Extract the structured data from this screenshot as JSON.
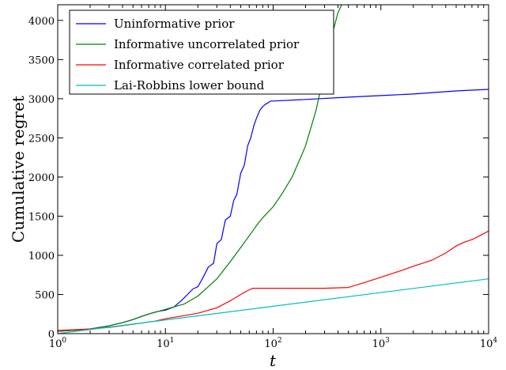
{
  "chart_data": {
    "type": "line",
    "xlabel": "t",
    "ylabel": "Cumulative regret",
    "xscale": "log",
    "xlim": [
      1,
      10000
    ],
    "ylim": [
      0,
      4200
    ],
    "legend_position": "top-left",
    "x_ticks": [
      {
        "value": 1,
        "base": "10",
        "exp": "0"
      },
      {
        "value": 10,
        "base": "10",
        "exp": "1"
      },
      {
        "value": 100,
        "base": "10",
        "exp": "2"
      },
      {
        "value": 1000,
        "base": "10",
        "exp": "3"
      },
      {
        "value": 10000,
        "base": "10",
        "exp": "4"
      }
    ],
    "y_ticks": [
      "0",
      "500",
      "1000",
      "1500",
      "2000",
      "2500",
      "3000",
      "3500",
      "4000"
    ],
    "series": [
      {
        "name": "Uninformative prior",
        "color": "#0000ff",
        "x": [
          1,
          1.5,
          2,
          3,
          4,
          5,
          6,
          7,
          8,
          9,
          10,
          12,
          14,
          16,
          18,
          20,
          22,
          25,
          28,
          30,
          33,
          36,
          40,
          43,
          46,
          50,
          54,
          58,
          62,
          66,
          70,
          75,
          80,
          85,
          90,
          95,
          97,
          100,
          200,
          500,
          1000,
          2000,
          5000,
          10000
        ],
        "y": [
          30,
          45,
          60,
          100,
          140,
          180,
          220,
          250,
          275,
          290,
          300,
          340,
          420,
          500,
          570,
          600,
          700,
          850,
          900,
          1150,
          1200,
          1450,
          1500,
          1700,
          1780,
          2050,
          2150,
          2400,
          2500,
          2650,
          2750,
          2850,
          2900,
          2930,
          2950,
          2970,
          2970,
          2970,
          2990,
          3020,
          3040,
          3060,
          3100,
          3120
        ]
      },
      {
        "name": "Informative uncorrelated prior",
        "color": "#008000",
        "x": [
          1,
          1.5,
          2,
          3,
          4,
          5,
          7,
          10,
          15,
          20,
          30,
          40,
          50,
          60,
          70,
          80,
          100,
          120,
          150,
          180,
          200,
          250,
          300,
          350,
          400,
          450
        ],
        "y": [
          30,
          45,
          60,
          100,
          140,
          180,
          250,
          310,
          380,
          480,
          700,
          920,
          1100,
          1250,
          1380,
          1480,
          1620,
          1780,
          2000,
          2250,
          2400,
          2850,
          3350,
          3800,
          4100,
          4250
        ]
      },
      {
        "name": "Informative correlated prior",
        "color": "#ff0000",
        "x": [
          1,
          2,
          3,
          5,
          8,
          10,
          15,
          20,
          30,
          40,
          50,
          60,
          65,
          70,
          100,
          200,
          300,
          500,
          700,
          1000,
          1500,
          2000,
          3000,
          4000,
          5000,
          6000,
          7000,
          8000,
          10000
        ],
        "y": [
          40,
          60,
          80,
          120,
          160,
          190,
          230,
          260,
          330,
          420,
          500,
          560,
          580,
          580,
          580,
          580,
          580,
          590,
          650,
          720,
          800,
          860,
          940,
          1030,
          1120,
          1170,
          1200,
          1240,
          1310
        ]
      },
      {
        "name": "Lai-Robbins lower bound",
        "color": "#00bfbf",
        "x": [
          1,
          10000
        ],
        "y": [
          0,
          700
        ]
      }
    ]
  }
}
